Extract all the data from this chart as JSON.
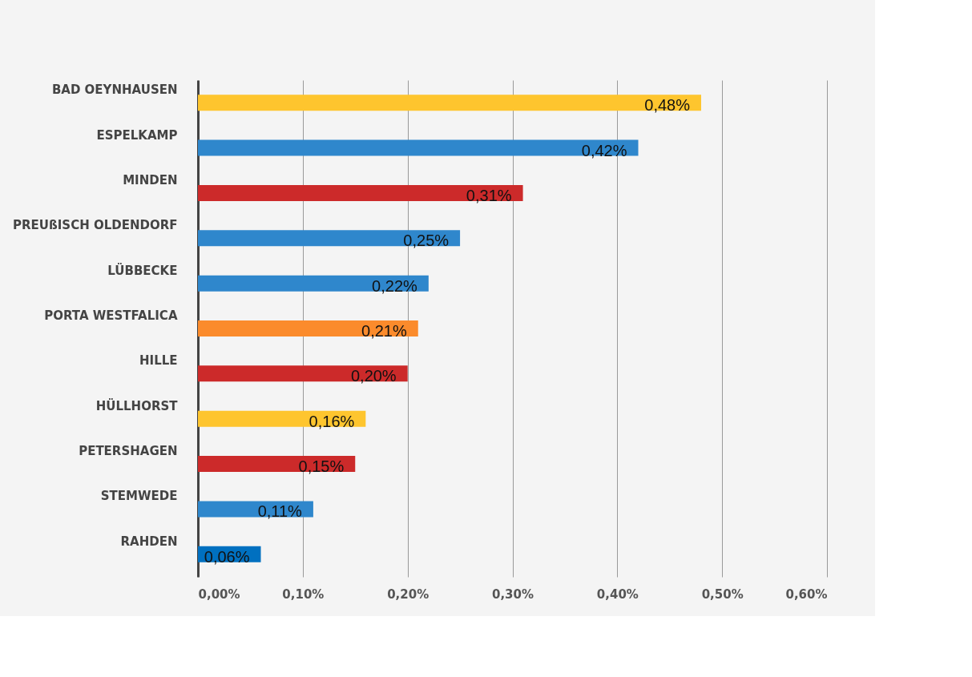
{
  "chart_data": {
    "type": "bar",
    "orientation": "horizontal",
    "categories": [
      "BAD OEYNHAUSEN",
      "ESPELKAMP",
      "MINDEN",
      "PREUßISCH OLDENDORF",
      "LÜBBECKE",
      "PORTA WESTFALICA",
      "HILLE",
      "HÜLLHORST",
      "PETERSHAGEN",
      "STEMWEDE",
      "RAHDEN"
    ],
    "values": [
      0.48,
      0.42,
      0.31,
      0.25,
      0.22,
      0.21,
      0.2,
      0.16,
      0.15,
      0.11,
      0.06
    ],
    "colors": [
      "#fec52e",
      "#2f87cc",
      "#cc2a2a",
      "#2f87cc",
      "#2f87cc",
      "#fb8b2c",
      "#cc2a2a",
      "#fec52e",
      "#cc2a2a",
      "#2f87cc",
      "#0070c0"
    ],
    "value_labels": [
      "0,48%",
      "0,42%",
      "0,31%",
      "0,25%",
      "0,22%",
      "0,21%",
      "0,20%",
      "0,16%",
      "0,15%",
      "0,11%",
      "0,06%"
    ],
    "xlim": [
      0,
      0.6
    ],
    "xticks": [
      {
        "value": 0,
        "label": "0,00%"
      },
      {
        "value": 0.1,
        "label": "0,10%"
      },
      {
        "value": 0.2,
        "label": "0,20%"
      },
      {
        "value": 0.3,
        "label": "0,30%"
      },
      {
        "value": 0.4,
        "label": "0,40%"
      },
      {
        "value": 0.5,
        "label": "0,50%"
      },
      {
        "value": 0.6,
        "label": "0,60%"
      }
    ],
    "grid": "x"
  }
}
